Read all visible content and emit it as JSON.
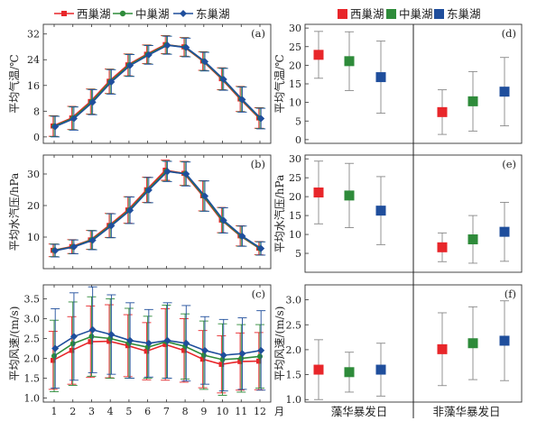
{
  "colors": {
    "west": "#e8262a",
    "mid": "#2e8b3a",
    "east": "#1f4e9c"
  },
  "left_legend": [
    "西巢湖",
    "中巢湖",
    "东巢湖"
  ],
  "right_legend": [
    "西巢湖",
    "中巢湖",
    "东巢湖"
  ],
  "chart_data": [
    {
      "type": "line",
      "panel": "(a)",
      "ylabel": "平均气温/℃",
      "x": [
        1,
        2,
        3,
        4,
        5,
        6,
        7,
        8,
        9,
        10,
        11,
        12
      ],
      "ylim": [
        -2,
        35
      ],
      "yticks": [
        "0",
        "8",
        "16",
        "24",
        "32"
      ],
      "series": [
        {
          "name": "西巢湖",
          "values": [
            3.4,
            5.9,
            11.0,
            17.3,
            22.4,
            25.7,
            28.7,
            28.0,
            23.6,
            18.1,
            11.8,
            5.9
          ],
          "err": [
            3.2,
            3.6,
            3.9,
            3.8,
            3.4,
            2.9,
            2.8,
            2.9,
            2.9,
            3.4,
            3.9,
            3.2
          ]
        },
        {
          "name": "中巢湖",
          "values": [
            3.3,
            5.8,
            10.9,
            17.2,
            22.3,
            25.6,
            28.6,
            27.9,
            23.5,
            18.0,
            11.7,
            5.8
          ],
          "err": [
            3.2,
            3.6,
            3.9,
            3.8,
            3.4,
            2.9,
            2.8,
            2.9,
            2.9,
            3.4,
            3.9,
            3.2
          ]
        },
        {
          "name": "东巢湖",
          "values": [
            3.2,
            5.7,
            10.8,
            17.1,
            22.2,
            25.5,
            28.5,
            27.8,
            23.4,
            17.9,
            11.6,
            5.7
          ],
          "err": [
            3.2,
            3.6,
            3.9,
            3.8,
            3.4,
            2.9,
            2.8,
            2.9,
            2.9,
            3.4,
            3.9,
            3.2
          ]
        }
      ]
    },
    {
      "type": "line",
      "panel": "(b)",
      "ylabel": "平均水汽压/hPa",
      "x": [
        1,
        2,
        3,
        4,
        5,
        6,
        7,
        8,
        9,
        10,
        11,
        12
      ],
      "ylim": [
        0,
        36
      ],
      "yticks": [
        "10",
        "20",
        "30"
      ],
      "series": [
        {
          "name": "西巢湖",
          "values": [
            5.8,
            7.0,
            9.1,
            13.7,
            18.6,
            25.0,
            31.2,
            30.2,
            23.1,
            15.4,
            10.4,
            6.5
          ],
          "err": [
            2.0,
            2.2,
            3.0,
            3.8,
            4.2,
            4.0,
            3.2,
            3.8,
            4.8,
            4.0,
            3.2,
            2.1
          ]
        },
        {
          "name": "中巢湖",
          "values": [
            5.8,
            6.9,
            9.1,
            13.6,
            18.5,
            24.9,
            30.9,
            30.1,
            23.0,
            15.3,
            10.3,
            6.4
          ],
          "err": [
            2.0,
            2.2,
            3.0,
            3.8,
            4.2,
            4.0,
            3.2,
            3.8,
            4.8,
            4.0,
            3.2,
            2.1
          ]
        },
        {
          "name": "东巢湖",
          "values": [
            5.7,
            6.9,
            9.0,
            13.6,
            18.5,
            24.9,
            30.8,
            30.0,
            23.0,
            15.3,
            10.3,
            6.4
          ],
          "err": [
            2.0,
            2.2,
            3.0,
            3.8,
            4.2,
            4.0,
            3.2,
            3.8,
            4.8,
            4.0,
            3.2,
            2.1
          ]
        }
      ]
    },
    {
      "type": "line",
      "panel": "(c)",
      "ylabel": "平均风速/(m/s)",
      "x": [
        1,
        2,
        3,
        4,
        5,
        6,
        7,
        8,
        9,
        10,
        11,
        12
      ],
      "ylim": [
        0.9,
        3.85
      ],
      "yticks": [
        "1.0",
        "1.5",
        "2.0",
        "2.5",
        "3.0",
        "3.5"
      ],
      "xlabel_unit": "月",
      "series": [
        {
          "name": "西巢湖",
          "values": [
            1.95,
            2.2,
            2.42,
            2.43,
            2.32,
            2.18,
            2.35,
            2.2,
            1.98,
            1.85,
            1.92,
            1.93
          ],
          "err": [
            0.73,
            0.85,
            0.9,
            0.92,
            0.78,
            0.72,
            0.9,
            0.8,
            0.72,
            0.72,
            0.72,
            0.72
          ]
        },
        {
          "name": "中巢湖",
          "values": [
            2.06,
            2.37,
            2.55,
            2.5,
            2.38,
            2.28,
            2.42,
            2.3,
            2.08,
            1.97,
            2.0,
            2.05
          ],
          "err": [
            0.9,
            1.05,
            1.0,
            1.0,
            0.88,
            0.78,
            0.92,
            0.82,
            0.86,
            0.9,
            0.85,
            0.8
          ]
        },
        {
          "name": "东巢湖",
          "values": [
            2.25,
            2.55,
            2.72,
            2.6,
            2.45,
            2.38,
            2.45,
            2.38,
            2.2,
            2.08,
            2.12,
            2.2
          ],
          "err": [
            1.0,
            1.1,
            1.08,
            1.0,
            0.95,
            0.85,
            0.95,
            0.95,
            0.85,
            0.9,
            0.9,
            1.0
          ]
        }
      ]
    },
    {
      "type": "scatter",
      "panel": "(d)",
      "ylabel": "平均气温/℃",
      "ylim": [
        -1,
        31
      ],
      "yticks": [
        "0",
        "5",
        "10",
        "15",
        "20",
        "25",
        "30"
      ],
      "groups": [
        "藻华暴发日",
        "非藻华暴发日"
      ],
      "series": [
        {
          "name": "西巢湖",
          "values": [
            22.8,
            7.4
          ],
          "err": [
            6.3,
            6.0
          ]
        },
        {
          "name": "中巢湖",
          "values": [
            21.1,
            10.3
          ],
          "err": [
            7.9,
            8.0
          ]
        },
        {
          "name": "东巢湖",
          "values": [
            16.8,
            12.9
          ],
          "err": [
            9.7,
            9.2
          ]
        }
      ]
    },
    {
      "type": "scatter",
      "panel": "(e)",
      "ylabel": "平均水汽压/hPa",
      "ylim": [
        0,
        31
      ],
      "yticks": [
        "5",
        "10",
        "15",
        "20",
        "25",
        "30"
      ],
      "groups": [
        "藻华暴发日",
        "非藻华暴发日"
      ],
      "series": [
        {
          "name": "西巢湖",
          "values": [
            21.1,
            6.6
          ],
          "err": [
            8.3,
            3.8
          ]
        },
        {
          "name": "中巢湖",
          "values": [
            20.3,
            8.7
          ],
          "err": [
            8.5,
            6.3
          ]
        },
        {
          "name": "东巢湖",
          "values": [
            16.3,
            10.7
          ],
          "err": [
            9.0,
            7.8
          ]
        }
      ]
    },
    {
      "type": "scatter",
      "panel": "(f)",
      "ylabel": "平均风速/(m/s)",
      "ylim": [
        0.95,
        3.3
      ],
      "yticks": [
        "1.0",
        "1.5",
        "2.0",
        "2.5",
        "3.0"
      ],
      "groups": [
        "藻华暴发日",
        "非藻华暴发日"
      ],
      "series": [
        {
          "name": "西巢湖",
          "values": [
            1.6,
            2.01
          ],
          "err": [
            0.6,
            0.73
          ]
        },
        {
          "name": "中巢湖",
          "values": [
            1.55,
            2.13
          ],
          "err": [
            0.4,
            0.73
          ]
        },
        {
          "name": "东巢湖",
          "values": [
            1.6,
            2.18
          ],
          "err": [
            0.53,
            0.8
          ]
        }
      ]
    }
  ]
}
